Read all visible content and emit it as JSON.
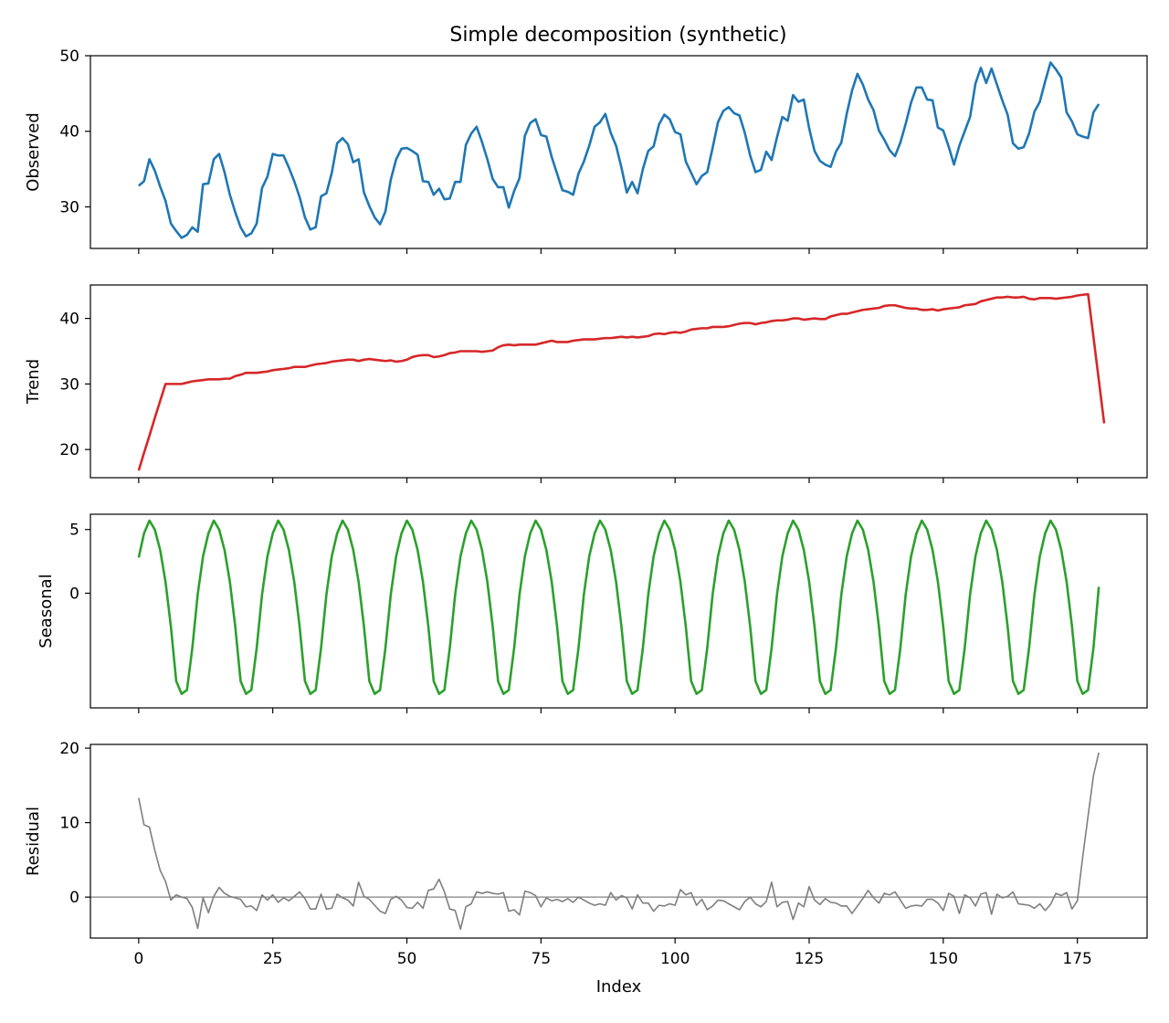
{
  "figure": {
    "title": "Simple decomposition (synthetic)"
  },
  "chart_data": [
    {
      "type": "line",
      "name": "observed",
      "ylabel": "Observed",
      "xlabel": "",
      "color": "#1f77b4",
      "xlim": [
        -9,
        188
      ],
      "ylim": [
        24.5,
        50
      ],
      "yticks": [
        30,
        40,
        50
      ],
      "xticks": [
        0,
        25,
        50,
        75,
        100,
        125,
        150,
        175
      ],
      "show_xtick_labels": false,
      "x_start": 0,
      "values": [
        32.8,
        33.4,
        36.3,
        34.8,
        32.7,
        30.8,
        27.8,
        26.8,
        25.9,
        26.3,
        27.3,
        26.7,
        33.0,
        33.1,
        36.3,
        37.0,
        34.6,
        31.6,
        29.3,
        27.3,
        26.1,
        26.5,
        27.8,
        32.5,
        34.0,
        37.0,
        36.8,
        36.8,
        35.2,
        33.4,
        31.3,
        28.6,
        27.0,
        27.3,
        31.4,
        31.8,
        34.5,
        38.4,
        39.1,
        38.3,
        35.9,
        36.3,
        31.9,
        30.1,
        28.6,
        27.7,
        29.4,
        33.6,
        36.3,
        37.7,
        37.8,
        37.4,
        36.9,
        33.4,
        33.3,
        31.6,
        32.4,
        31.0,
        31.1,
        33.3,
        33.3,
        38.2,
        39.7,
        40.6,
        38.6,
        36.3,
        33.7,
        32.6,
        32.6,
        29.9,
        32.1,
        33.8,
        39.4,
        41.1,
        41.6,
        39.5,
        39.3,
        36.6,
        34.4,
        32.2,
        32.0,
        31.6,
        34.4,
        36.0,
        38.1,
        40.6,
        41.2,
        42.3,
        39.8,
        38.1,
        35.2,
        31.9,
        33.3,
        31.8,
        35.0,
        37.4,
        38.0,
        40.9,
        42.2,
        41.6,
        39.9,
        39.6,
        36.0,
        34.5,
        33.0,
        34.1,
        34.6,
        37.8,
        41.2,
        42.7,
        43.2,
        42.4,
        42.1,
        39.8,
        36.8,
        34.6,
        34.9,
        37.3,
        36.2,
        39.2,
        41.9,
        41.4,
        44.8,
        43.9,
        44.2,
        40.4,
        37.4,
        36.1,
        35.6,
        35.3,
        37.3,
        38.5,
        42.3,
        45.4,
        47.6,
        46.2,
        44.2,
        42.8,
        40.1,
        38.9,
        37.5,
        36.7,
        38.5,
        41.0,
        43.8,
        45.8,
        45.8,
        44.2,
        44.1,
        40.5,
        40.1,
        38.0,
        35.6,
        38.1,
        40.0,
        41.9,
        46.3,
        48.4,
        46.4,
        48.3,
        46.2,
        44.1,
        42.2,
        38.4,
        37.7,
        37.9,
        39.7,
        42.6,
        43.9,
        46.6,
        49.1,
        48.2,
        47.1,
        42.5,
        41.3,
        39.6,
        39.3,
        39.1,
        42.5,
        43.6
      ]
    },
    {
      "type": "line",
      "name": "trend",
      "ylabel": "Trend",
      "xlabel": "",
      "color": "#d62728",
      "xlim": [
        -9,
        188
      ],
      "ylim": [
        15.7,
        45.1
      ],
      "yticks": [
        20,
        30,
        40
      ],
      "xticks": [
        0,
        25,
        50,
        75,
        100,
        125,
        150,
        175
      ],
      "show_xtick_labels": false,
      "x_start": 0,
      "values": [
        16.8,
        19.5,
        22.1,
        24.8,
        27.4,
        30.0,
        30.0,
        30.0,
        30.0,
        30.2,
        30.4,
        30.5,
        30.6,
        30.7,
        30.7,
        30.7,
        30.8,
        30.8,
        31.2,
        31.4,
        31.7,
        31.7,
        31.7,
        31.8,
        31.9,
        32.1,
        32.2,
        32.3,
        32.4,
        32.6,
        32.6,
        32.6,
        32.8,
        33.0,
        33.1,
        33.2,
        33.4,
        33.5,
        33.6,
        33.7,
        33.7,
        33.5,
        33.7,
        33.8,
        33.7,
        33.6,
        33.5,
        33.6,
        33.4,
        33.5,
        33.7,
        34.1,
        34.3,
        34.4,
        34.4,
        34.1,
        34.2,
        34.4,
        34.7,
        34.8,
        35.0,
        35.0,
        35.0,
        35.0,
        34.9,
        35.0,
        35.1,
        35.6,
        35.9,
        36.0,
        35.9,
        36.0,
        36.0,
        36.0,
        36.0,
        36.2,
        36.4,
        36.6,
        36.4,
        36.4,
        36.4,
        36.6,
        36.7,
        36.8,
        36.8,
        36.8,
        36.9,
        37.0,
        37.0,
        37.1,
        37.2,
        37.1,
        37.2,
        37.1,
        37.2,
        37.3,
        37.6,
        37.7,
        37.6,
        37.8,
        37.9,
        37.8,
        38.0,
        38.3,
        38.4,
        38.5,
        38.5,
        38.7,
        38.7,
        38.7,
        38.8,
        39.0,
        39.2,
        39.3,
        39.3,
        39.1,
        39.3,
        39.4,
        39.6,
        39.7,
        39.7,
        39.8,
        40.0,
        40.0,
        39.8,
        39.9,
        40.0,
        39.9,
        39.9,
        40.3,
        40.5,
        40.7,
        40.7,
        40.9,
        41.1,
        41.3,
        41.4,
        41.5,
        41.6,
        41.9,
        42.0,
        42.0,
        41.8,
        41.6,
        41.5,
        41.5,
        41.3,
        41.3,
        41.4,
        41.2,
        41.4,
        41.5,
        41.6,
        41.7,
        42.0,
        42.1,
        42.2,
        42.6,
        42.8,
        43.0,
        43.2,
        43.2,
        43.3,
        43.2,
        43.2,
        43.3,
        43.0,
        42.9,
        43.1,
        43.1,
        43.1,
        43.0,
        43.1,
        43.2,
        43.3,
        43.5,
        43.6,
        43.7,
        37.2,
        30.6,
        24.0
      ]
    },
    {
      "type": "line",
      "name": "seasonal",
      "ylabel": "Seasonal",
      "xlabel": "",
      "color": "#2ca02c",
      "xlim": [
        -9,
        188
      ],
      "ylim": [
        -9.0,
        6.2
      ],
      "yticks": [
        0,
        5
      ],
      "xticks": [
        0,
        25,
        50,
        75,
        100,
        125,
        150,
        175
      ],
      "show_xtick_labels": false,
      "x_start": 0,
      "values": [
        2.8,
        4.7,
        5.7,
        5.0,
        3.4,
        0.9,
        -2.6,
        -6.9,
        -7.9,
        -7.6,
        -4.3,
        -0.1,
        2.9,
        4.7,
        5.7,
        5.0,
        3.4,
        0.9,
        -2.6,
        -6.9,
        -7.9,
        -7.6,
        -4.3,
        -0.1,
        2.9,
        4.7,
        5.7,
        5.0,
        3.4,
        0.9,
        -2.6,
        -6.9,
        -7.9,
        -7.6,
        -4.3,
        -0.1,
        2.9,
        4.7,
        5.7,
        5.0,
        3.4,
        0.9,
        -2.6,
        -6.9,
        -7.9,
        -7.6,
        -4.3,
        -0.1,
        2.9,
        4.7,
        5.7,
        5.0,
        3.4,
        0.9,
        -2.6,
        -6.9,
        -7.9,
        -7.6,
        -4.3,
        -0.1,
        2.9,
        4.7,
        5.7,
        5.0,
        3.4,
        0.9,
        -2.6,
        -6.9,
        -7.9,
        -7.6,
        -4.3,
        -0.1,
        2.9,
        4.7,
        5.7,
        5.0,
        3.4,
        0.9,
        -2.6,
        -6.9,
        -7.9,
        -7.6,
        -4.3,
        -0.1,
        2.9,
        4.7,
        5.7,
        5.0,
        3.4,
        0.9,
        -2.6,
        -6.9,
        -7.9,
        -7.6,
        -4.3,
        -0.1,
        2.9,
        4.7,
        5.7,
        5.0,
        3.4,
        0.9,
        -2.6,
        -6.9,
        -7.9,
        -7.6,
        -4.3,
        -0.1,
        2.9,
        4.7,
        5.7,
        5.0,
        3.4,
        0.9,
        -2.6,
        -6.9,
        -7.9,
        -7.6,
        -4.3,
        -0.1,
        2.9,
        4.7,
        5.7,
        5.0,
        3.4,
        0.9,
        -2.6,
        -6.9,
        -7.9,
        -7.6,
        -4.3,
        -0.1,
        2.9,
        4.7,
        5.7,
        5.0,
        3.4,
        0.9,
        -2.6,
        -6.9,
        -7.9,
        -7.6,
        -4.3,
        -0.1,
        2.9,
        4.7,
        5.7,
        5.0,
        3.4,
        0.9,
        -2.6,
        -6.9,
        -7.9,
        -7.6,
        -4.3,
        -0.1,
        2.9,
        4.7,
        5.7,
        5.0,
        3.4,
        0.9,
        -2.6,
        -6.9,
        -7.9,
        -7.6,
        -4.3,
        -0.1,
        2.9,
        4.7,
        5.7,
        5.0,
        3.4,
        0.9,
        -2.6,
        -6.9,
        -7.9,
        -7.6,
        -4.3,
        0.5
      ]
    },
    {
      "type": "line",
      "name": "residual",
      "ylabel": "Residual",
      "xlabel": "Index",
      "color": "#7f7f7f",
      "zero_line": true,
      "xlim": [
        -9,
        188
      ],
      "ylim": [
        -5.5,
        20.5
      ],
      "yticks": [
        0,
        10,
        20
      ],
      "xticks": [
        0,
        25,
        50,
        75,
        100,
        125,
        150,
        175
      ],
      "show_xtick_labels": true,
      "x_start": 0,
      "values": [
        13.3,
        9.7,
        9.4,
        6.3,
        3.6,
        2.1,
        -0.4,
        0.3,
        0.0,
        -0.2,
        -1.4,
        -4.2,
        -0.1,
        -2.1,
        0.1,
        1.3,
        0.5,
        0.1,
        -0.1,
        -0.3,
        -1.3,
        -1.2,
        -1.8,
        0.3,
        -0.4,
        0.3,
        -0.7,
        -0.1,
        -0.5,
        0.1,
        0.7,
        -0.2,
        -1.6,
        -1.6,
        0.4,
        -1.6,
        -1.5,
        0.4,
        -0.1,
        -0.4,
        -1.2,
        2.0,
        0.1,
        -0.3,
        -1.1,
        -1.9,
        -2.2,
        -0.3,
        0.1,
        -0.4,
        -1.4,
        -1.5,
        -0.7,
        -1.5,
        0.9,
        1.1,
        2.4,
        0.7,
        -1.6,
        -1.8,
        -4.3,
        -1.3,
        -0.9,
        0.7,
        0.5,
        0.7,
        0.5,
        0.4,
        0.6,
        -1.9,
        -1.7,
        -2.4,
        0.8,
        0.6,
        0.2,
        -1.3,
        -0.1,
        -0.5,
        -0.3,
        -0.6,
        -0.2,
        -0.7,
        0.0,
        -0.4,
        -0.8,
        -1.1,
        -0.9,
        -1.1,
        0.6,
        -0.4,
        0.2,
        -0.1,
        -1.6,
        0.3,
        -0.8,
        -0.8,
        -1.9,
        -1.1,
        -1.2,
        -0.9,
        -1.1,
        1.0,
        0.3,
        0.6,
        -1.1,
        -0.3,
        -1.7,
        -1.2,
        -0.4,
        -0.5,
        -0.9,
        -1.3,
        -1.7,
        -0.6,
        0.0,
        -0.9,
        -1.3,
        -0.6,
        2.0,
        -1.3,
        -0.7,
        -0.6,
        -3.0,
        -0.8,
        -1.3,
        1.4,
        -0.4,
        -1.0,
        -0.2,
        -0.7,
        -0.8,
        -1.2,
        -1.2,
        -2.2,
        -1.2,
        -0.2,
        0.9,
        -0.1,
        -0.8,
        0.5,
        0.3,
        0.7,
        -0.4,
        -1.5,
        -1.2,
        -1.1,
        -1.2,
        -0.3,
        -0.3,
        -0.8,
        -1.8,
        0.5,
        0.1,
        -2.2,
        0.3,
        -0.1,
        -1.2,
        0.4,
        0.6,
        -2.3,
        0.4,
        -0.1,
        0.1,
        0.7,
        -0.9,
        -1.0,
        -1.1,
        -1.5,
        -0.9,
        -1.8,
        -1.0,
        0.5,
        0.2,
        0.6,
        -1.6,
        -0.5,
        5.4,
        10.9,
        16.3,
        19.4
      ]
    }
  ]
}
